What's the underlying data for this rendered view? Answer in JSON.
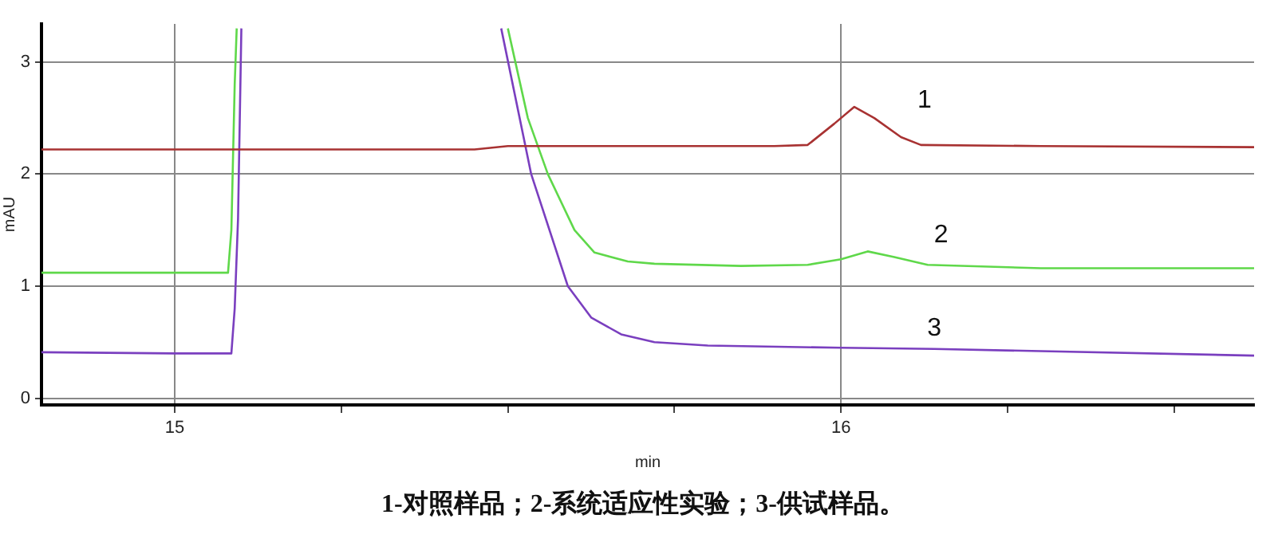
{
  "chart_data": {
    "type": "line",
    "xlabel": "min",
    "ylabel": "mAU",
    "xlim": [
      14.8,
      16.62
    ],
    "ylim": [
      -0.06,
      3.34
    ],
    "xticks": [
      15,
      {
        "value": 15.25,
        "label": null
      },
      {
        "value": 15.5,
        "label": null
      },
      {
        "value": 15.75,
        "label": null
      },
      16,
      {
        "value": 16.25,
        "label": null
      },
      {
        "value": 16.5,
        "label": null
      }
    ],
    "yticks": [
      0,
      1,
      2,
      3
    ],
    "grid": true,
    "series": [
      {
        "color": "#a83232",
        "x": [
          14.8,
          15.2,
          15.45,
          15.5,
          15.9,
          15.95,
          15.99,
          16.02,
          16.05,
          16.09,
          16.12,
          16.3,
          16.62
        ],
        "values": [
          2.22,
          2.22,
          2.22,
          2.25,
          2.25,
          2.26,
          2.45,
          2.6,
          2.5,
          2.33,
          2.26,
          2.25,
          2.24
        ]
      },
      {
        "color": "#5fd84a",
        "x": [
          14.8,
          15.0,
          15.08,
          15.085,
          15.09,
          15.093,
          15.3,
          15.5,
          15.53,
          15.56,
          15.6,
          15.63,
          15.68,
          15.72,
          15.85,
          15.95,
          16.0,
          16.04,
          16.08,
          16.13,
          16.3,
          16.62
        ],
        "values": [
          1.12,
          1.12,
          1.12,
          1.5,
          2.8,
          3.3,
          null,
          3.3,
          2.5,
          2.0,
          1.5,
          1.3,
          1.22,
          1.2,
          1.18,
          1.19,
          1.24,
          1.31,
          1.26,
          1.19,
          1.16,
          1.16
        ]
      },
      {
        "color": "#7a3fbf",
        "x": [
          14.8,
          15.0,
          15.085,
          15.09,
          15.095,
          15.1,
          15.3,
          15.49,
          15.535,
          15.59,
          15.625,
          15.67,
          15.72,
          15.8,
          16.0,
          16.14,
          16.3,
          16.62
        ],
        "values": [
          0.41,
          0.4,
          0.4,
          0.8,
          1.6,
          3.3,
          null,
          3.3,
          2.0,
          1.0,
          0.72,
          0.57,
          0.5,
          0.47,
          0.45,
          0.44,
          0.42,
          0.38
        ]
      }
    ],
    "annotations": [
      {
        "text": "1",
        "x": 16.02,
        "y": 2.6
      },
      {
        "text": "2",
        "x": 16.04,
        "y": 1.31
      },
      {
        "text": "3",
        "x": 16.14,
        "y": 0.44
      },
      "1-对照样品；2-系统适应性实验；3-供试样品。"
    ]
  }
}
